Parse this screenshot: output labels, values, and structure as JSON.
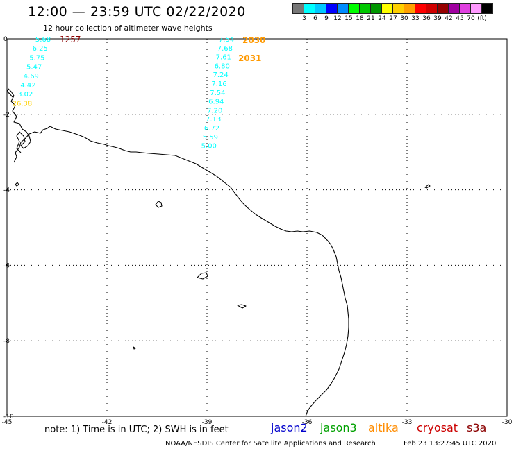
{
  "header": {
    "title": "12:00 — 23:59 UTC 02/22/2020",
    "subtitle": "12 hour collection of altimeter wave heights"
  },
  "colorbar": {
    "colors": [
      "#777777",
      "#00ffff",
      "#00c8ff",
      "#0000ff",
      "#008cff",
      "#00ff00",
      "#00c800",
      "#009600",
      "#ffff00",
      "#ffd000",
      "#ffa000",
      "#ff0000",
      "#d00000",
      "#960000",
      "#a000a0",
      "#e040e0",
      "#ff99ff",
      "#000000"
    ],
    "labels": [
      "3",
      "6",
      "9",
      "12",
      "15",
      "18",
      "21",
      "24",
      "27",
      "30",
      "33",
      "36",
      "39",
      "42",
      "45",
      "70",
      "(ft)"
    ]
  },
  "map": {
    "x_ticks": [
      "-45",
      "-42",
      "-39",
      "-36",
      "-33",
      "-30"
    ],
    "y_ticks": [
      "0",
      "-2",
      "-4",
      "-6",
      "-8",
      "-10"
    ],
    "lon_range": [
      -45,
      -30
    ],
    "lat_range": [
      -10,
      0
    ],
    "track_west": {
      "time_label": "1257",
      "time_color": "#8b0000",
      "values": [
        "5.68",
        "6.25",
        "5.75",
        "5.47",
        "4.69",
        "4.42",
        "3.02",
        "26.38"
      ],
      "colors": [
        "#00ffff",
        "#00ffff",
        "#00ffff",
        "#00ffff",
        "#00ffff",
        "#00ffff",
        "#00ffff",
        "#ffd000"
      ]
    },
    "track_east": {
      "time_labels": [
        "2030",
        "2031"
      ],
      "time_color": "#ff9900",
      "values": [
        "7.54",
        "7.68",
        "7.61",
        "6.80",
        "7.24",
        "7.16",
        "7.54",
        "6.94",
        "7.20",
        "7.13",
        "6.72",
        "5.59",
        "5.00"
      ],
      "colors": [
        "#00ffff",
        "#00ffff",
        "#00ffff",
        "#00ffff",
        "#00ffff",
        "#00ffff",
        "#00ffff",
        "#00ffff",
        "#00ffff",
        "#00ffff",
        "#00ffff",
        "#00ffff",
        "#00ffff"
      ]
    }
  },
  "footer": {
    "note": "note:  1) Time is in UTC;  2) SWH is in feet",
    "satellites": [
      {
        "name": "jason2",
        "color": "#0000cc"
      },
      {
        "name": "jason3",
        "color": "#00a000"
      },
      {
        "name": "altika",
        "color": "#ff8c00"
      },
      {
        "name": "cryosat",
        "color": "#cc0000"
      },
      {
        "name": "s3a",
        "color": "#8b0000"
      }
    ],
    "credit": "NOAA/NESDIS Center for Satellite Applications and Research",
    "timestamp": "Feb 23 13:27:45 UTC 2020"
  }
}
